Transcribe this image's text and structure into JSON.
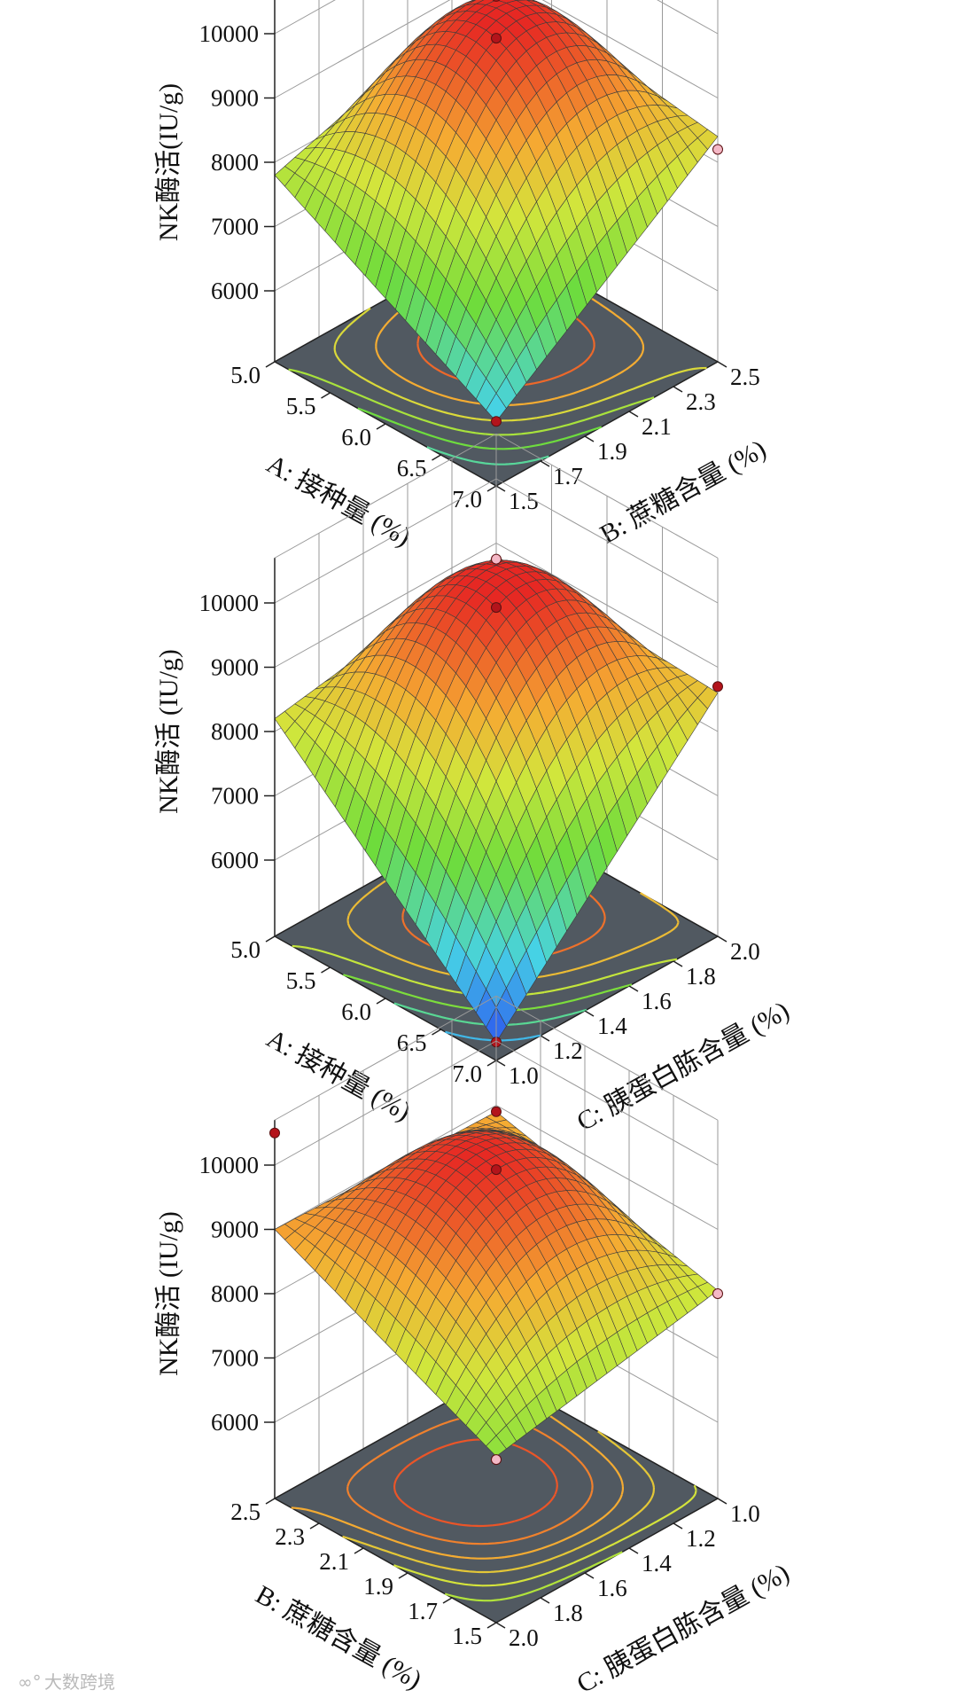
{
  "chart_data": [
    {
      "type": "surface3d",
      "zlabel": "NK酶活(IU/g)",
      "z_ticks": [
        6000,
        7000,
        8000,
        9000,
        10000
      ],
      "x_axis": {
        "label": "A: 接种量 (%)",
        "ticks": [
          "5.0",
          "5.5",
          "6.0",
          "6.5",
          "7.0"
        ],
        "range": [
          5.0,
          7.0
        ]
      },
      "y_axis": {
        "label": "B: 蔗糖含量 (%)",
        "ticks": [
          "1.5",
          "1.7",
          "1.9",
          "2.1",
          "2.3",
          "2.5"
        ],
        "range": [
          1.5,
          2.5
        ]
      },
      "surface_values": {
        "center": 9930,
        "x_low_y_low": 7800,
        "x_low_y_high": 8900,
        "x_high_y_low": 5900,
        "x_high_y_high": 8400
      },
      "points": [
        {
          "x": 6.0,
          "y": 2.0,
          "z": 9930,
          "color": "#b3141b"
        },
        {
          "x": 5.0,
          "y": 2.5,
          "z": 8650,
          "color": "#b3141b"
        },
        {
          "x": 7.0,
          "y": 2.5,
          "z": 8200,
          "color": "#f4b8c6"
        },
        {
          "x": 7.0,
          "y": 1.5,
          "z": 5900,
          "color": "#b3141b"
        }
      ]
    },
    {
      "type": "surface3d",
      "zlabel": "NK酶活 (IU/g)",
      "z_ticks": [
        6000,
        7000,
        8000,
        9000,
        10000
      ],
      "x_axis": {
        "label": "A: 接种量 (%)",
        "ticks": [
          "5.0",
          "5.5",
          "6.0",
          "6.5",
          "7.0"
        ],
        "range": [
          5.0,
          7.0
        ]
      },
      "y_axis": {
        "label": "C: 胰蛋白胨含量 (%)",
        "ticks": [
          "1.0",
          "1.2",
          "1.4",
          "1.6",
          "1.8",
          "2.0"
        ],
        "range": [
          1.0,
          2.0
        ]
      },
      "surface_values": {
        "center": 9930,
        "x_low_y_low": 8200,
        "x_low_y_high": 8800,
        "x_high_y_low": 5100,
        "x_high_y_high": 8600
      },
      "points": [
        {
          "x": 6.0,
          "y": 1.5,
          "z": 9930,
          "color": "#b3141b"
        },
        {
          "x": 5.0,
          "y": 2.0,
          "z": 8750,
          "color": "#f4b8c6"
        },
        {
          "x": 7.0,
          "y": 2.0,
          "z": 8700,
          "color": "#b3141b"
        },
        {
          "x": 7.0,
          "y": 1.0,
          "z": 5100,
          "color": "#b3141b"
        }
      ]
    },
    {
      "type": "surface3d",
      "zlabel": "NK酶活 (IU/g)",
      "z_ticks": [
        6000,
        7000,
        8000,
        9000,
        10000
      ],
      "x_axis": {
        "label": "B: 蔗糖含量 (%)",
        "ticks": [
          "2.5",
          "2.3",
          "2.1",
          "1.9",
          "1.7",
          "1.5"
        ],
        "range": [
          2.5,
          1.5
        ]
      },
      "y_axis": {
        "label": "C: 胰蛋白胨含量 (%)",
        "ticks": [
          "2.0",
          "1.8",
          "1.6",
          "1.4",
          "1.2",
          "1.0"
        ],
        "range": [
          2.0,
          1.0
        ]
      },
      "surface_values": {
        "center": 9930,
        "x_low_y_low": 9000,
        "x_low_y_high": 8900,
        "x_high_y_low": 7400,
        "x_high_y_high": 8050
      },
      "points": [
        {
          "x": 2.0,
          "y": 1.5,
          "z": 9930,
          "color": "#b3141b"
        },
        {
          "x": 2.5,
          "y": 1.0,
          "z": 8900,
          "color": "#b3141b"
        },
        {
          "x": 1.5,
          "y": 1.0,
          "z": 8000,
          "color": "#f4b8c6"
        },
        {
          "x": 1.5,
          "y": 2.0,
          "z": 7350,
          "color": "#f4b8c6"
        },
        {
          "x": 2.5,
          "y": 2.0,
          "z": 10500,
          "color": "#b3141b"
        }
      ]
    }
  ],
  "watermark": "大数跨境"
}
